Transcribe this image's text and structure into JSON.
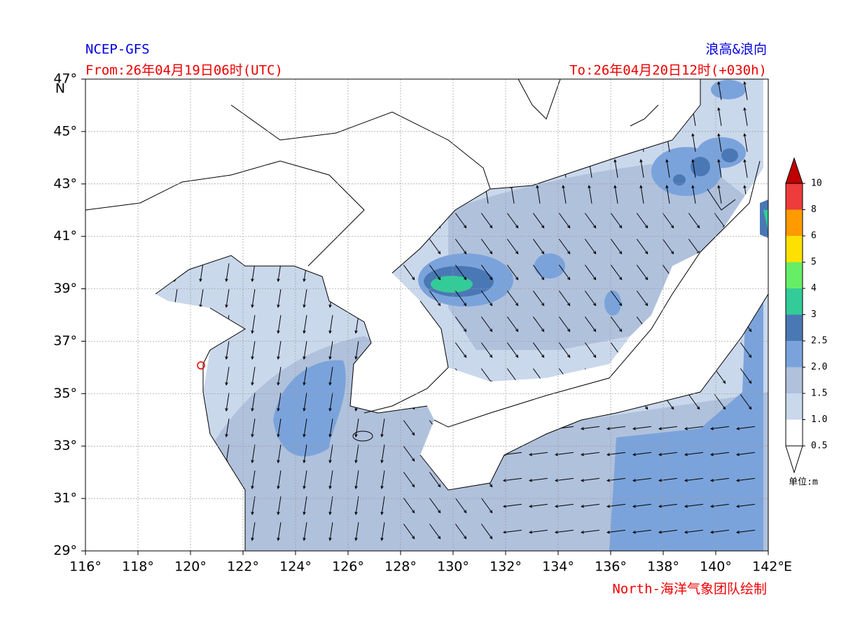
{
  "header": {
    "model": "NCEP-GFS",
    "product": "浪高&浪向",
    "from": "From:26年04月19日06时(UTC)",
    "to": "To:26年04月20日12时(+030h)"
  },
  "axes": {
    "lat_labels": [
      "47°",
      "45°",
      "43°",
      "41°",
      "39°",
      "37°",
      "35°",
      "33°",
      "31°",
      "29°"
    ],
    "lat_unit": "N",
    "lon_labels": [
      "116°",
      "118°",
      "120°",
      "122°",
      "124°",
      "126°",
      "128°",
      "130°",
      "132°",
      "134°",
      "136°",
      "138°",
      "140°",
      "142°"
    ],
    "lon_unit": "E"
  },
  "colorbar": {
    "labels": [
      "10",
      "8",
      "6",
      "5",
      "4",
      "3",
      "2.5",
      "2.0",
      "1.5",
      "1.0",
      "0.5"
    ],
    "colors": [
      "#ee3b3b",
      "#ff9a00",
      "#ffe100",
      "#66ee66",
      "#33cc99",
      "#4a78b5",
      "#7ba3db",
      "#b0c1dc",
      "#cad8ec",
      "#ffffff"
    ],
    "unit": "单位:m"
  },
  "footer": "North-海洋气象团队绘制"
}
